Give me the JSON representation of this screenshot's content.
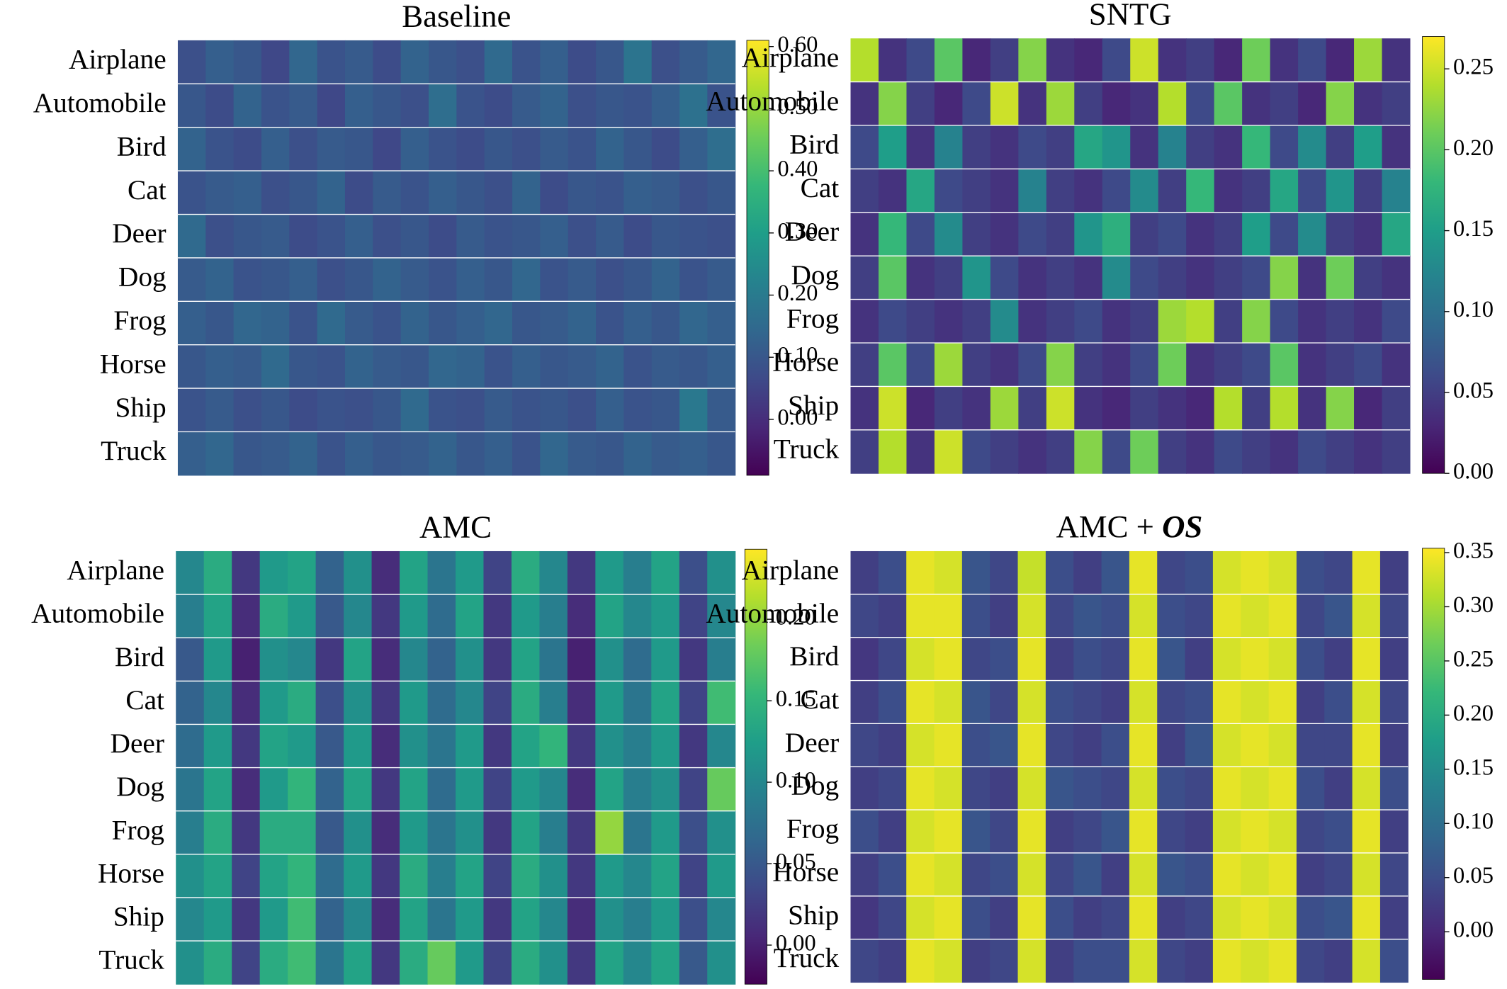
{
  "chart_data": [
    {
      "type": "heatmap",
      "title": "Baseline",
      "categories": [
        "Airplane",
        "Automobile",
        "Bird",
        "Cat",
        "Deer",
        "Dog",
        "Frog",
        "Horse",
        "Ship",
        "Truck"
      ],
      "values": [
        [
          0.08,
          0.12,
          0.1,
          0.06,
          0.14,
          0.09,
          0.11,
          0.07,
          0.13,
          0.1,
          0.08,
          0.15,
          0.09,
          0.12,
          0.07,
          0.1,
          0.18,
          0.08,
          0.11,
          0.14
        ],
        [
          0.1,
          0.07,
          0.13,
          0.09,
          0.11,
          0.06,
          0.12,
          0.1,
          0.08,
          0.16,
          0.09,
          0.07,
          0.11,
          0.13,
          0.08,
          0.1,
          0.09,
          0.12,
          0.17,
          0.09
        ],
        [
          0.13,
          0.09,
          0.07,
          0.12,
          0.08,
          0.11,
          0.1,
          0.06,
          0.12,
          0.09,
          0.07,
          0.1,
          0.08,
          0.11,
          0.09,
          0.13,
          0.1,
          0.07,
          0.12,
          0.16
        ],
        [
          0.09,
          0.11,
          0.12,
          0.08,
          0.1,
          0.13,
          0.07,
          0.11,
          0.09,
          0.12,
          0.1,
          0.08,
          0.13,
          0.07,
          0.1,
          0.09,
          0.12,
          0.11,
          0.08,
          0.1
        ],
        [
          0.15,
          0.08,
          0.1,
          0.11,
          0.07,
          0.09,
          0.12,
          0.08,
          0.1,
          0.07,
          0.11,
          0.09,
          0.1,
          0.12,
          0.08,
          0.11,
          0.07,
          0.1,
          0.09,
          0.08
        ],
        [
          0.11,
          0.13,
          0.09,
          0.1,
          0.12,
          0.08,
          0.1,
          0.13,
          0.11,
          0.09,
          0.12,
          0.1,
          0.14,
          0.09,
          0.11,
          0.08,
          0.1,
          0.13,
          0.09,
          0.11
        ],
        [
          0.12,
          0.1,
          0.14,
          0.13,
          0.09,
          0.15,
          0.11,
          0.09,
          0.13,
          0.1,
          0.12,
          0.14,
          0.1,
          0.11,
          0.13,
          0.09,
          0.12,
          0.1,
          0.14,
          0.12
        ],
        [
          0.1,
          0.12,
          0.11,
          0.15,
          0.1,
          0.09,
          0.13,
          0.11,
          0.1,
          0.14,
          0.13,
          0.09,
          0.12,
          0.1,
          0.11,
          0.13,
          0.09,
          0.11,
          0.1,
          0.12
        ],
        [
          0.09,
          0.11,
          0.08,
          0.1,
          0.07,
          0.09,
          0.08,
          0.1,
          0.15,
          0.09,
          0.08,
          0.11,
          0.09,
          0.1,
          0.08,
          0.12,
          0.09,
          0.1,
          0.19,
          0.11
        ],
        [
          0.12,
          0.14,
          0.1,
          0.11,
          0.13,
          0.09,
          0.12,
          0.1,
          0.11,
          0.13,
          0.1,
          0.12,
          0.09,
          0.14,
          0.11,
          0.1,
          0.13,
          0.11,
          0.12,
          0.1
        ]
      ],
      "zlim": [
        -0.09,
        0.61
      ],
      "zticks": [
        {
          "value": 0,
          "label": "0.00"
        },
        {
          "value": 0.1,
          "label": "0.10"
        },
        {
          "value": 0.2,
          "label": "0.20"
        },
        {
          "value": 0.3,
          "label": "0.30"
        },
        {
          "value": 0.4,
          "label": "0.40"
        },
        {
          "value": 0.5,
          "label": "0.50"
        },
        {
          "value": 0.6,
          "label": "0.60"
        }
      ]
    },
    {
      "type": "heatmap",
      "title": "SNTG",
      "categories": [
        "Airplane",
        "Automobile",
        "Bird",
        "Cat",
        "Deer",
        "Dog",
        "Frog",
        "Horse",
        "Ship",
        "Truck"
      ],
      "values": [
        [
          0.24,
          0.04,
          0.06,
          0.2,
          0.03,
          0.05,
          0.22,
          0.04,
          0.03,
          0.06,
          0.25,
          0.04,
          0.05,
          0.03,
          0.21,
          0.04,
          0.06,
          0.03,
          0.23,
          0.04
        ],
        [
          0.04,
          0.22,
          0.05,
          0.03,
          0.06,
          0.25,
          0.04,
          0.23,
          0.05,
          0.03,
          0.04,
          0.24,
          0.06,
          0.2,
          0.04,
          0.05,
          0.03,
          0.22,
          0.04,
          0.05
        ],
        [
          0.06,
          0.15,
          0.04,
          0.12,
          0.05,
          0.04,
          0.06,
          0.05,
          0.16,
          0.14,
          0.04,
          0.12,
          0.05,
          0.04,
          0.18,
          0.06,
          0.13,
          0.05,
          0.15,
          0.04
        ],
        [
          0.05,
          0.04,
          0.16,
          0.06,
          0.05,
          0.04,
          0.12,
          0.05,
          0.04,
          0.06,
          0.13,
          0.05,
          0.18,
          0.04,
          0.05,
          0.16,
          0.06,
          0.14,
          0.05,
          0.12
        ],
        [
          0.04,
          0.18,
          0.06,
          0.13,
          0.05,
          0.04,
          0.06,
          0.05,
          0.14,
          0.17,
          0.05,
          0.06,
          0.04,
          0.05,
          0.15,
          0.06,
          0.13,
          0.05,
          0.04,
          0.16
        ],
        [
          0.05,
          0.2,
          0.04,
          0.05,
          0.14,
          0.06,
          0.04,
          0.05,
          0.04,
          0.13,
          0.06,
          0.05,
          0.04,
          0.05,
          0.06,
          0.22,
          0.04,
          0.21,
          0.05,
          0.04
        ],
        [
          0.04,
          0.06,
          0.05,
          0.04,
          0.05,
          0.13,
          0.04,
          0.05,
          0.06,
          0.04,
          0.05,
          0.23,
          0.24,
          0.05,
          0.22,
          0.06,
          0.04,
          0.05,
          0.04,
          0.06
        ],
        [
          0.05,
          0.2,
          0.06,
          0.23,
          0.05,
          0.04,
          0.06,
          0.22,
          0.05,
          0.04,
          0.06,
          0.21,
          0.04,
          0.05,
          0.06,
          0.2,
          0.04,
          0.05,
          0.06,
          0.04
        ],
        [
          0.04,
          0.25,
          0.03,
          0.05,
          0.04,
          0.23,
          0.05,
          0.25,
          0.04,
          0.03,
          0.05,
          0.04,
          0.03,
          0.24,
          0.05,
          0.24,
          0.04,
          0.22,
          0.03,
          0.05
        ],
        [
          0.05,
          0.24,
          0.04,
          0.25,
          0.06,
          0.05,
          0.04,
          0.05,
          0.22,
          0.06,
          0.21,
          0.05,
          0.04,
          0.06,
          0.05,
          0.04,
          0.06,
          0.05,
          0.04,
          0.05
        ]
      ],
      "zlim": [
        0,
        0.27
      ],
      "zticks": [
        {
          "value": 0,
          "label": "0.00"
        },
        {
          "value": 0.05,
          "label": "0.05"
        },
        {
          "value": 0.1,
          "label": "0.10"
        },
        {
          "value": 0.15,
          "label": "0.15"
        },
        {
          "value": 0.2,
          "label": "0.20"
        },
        {
          "value": 0.25,
          "label": "0.25"
        }
      ]
    },
    {
      "type": "heatmap",
      "title": "AMC",
      "categories": [
        "Airplane",
        "Automobile",
        "Bird",
        "Cat",
        "Deer",
        "Dog",
        "Frog",
        "Horse",
        "Ship",
        "Truck"
      ],
      "values": [
        [
          0.1,
          0.14,
          0.02,
          0.12,
          0.13,
          0.06,
          0.11,
          0.01,
          0.13,
          0.08,
          0.12,
          0.03,
          0.14,
          0.1,
          0.02,
          0.12,
          0.09,
          0.13,
          0.04,
          0.11
        ],
        [
          0.09,
          0.13,
          0.01,
          0.14,
          0.12,
          0.05,
          0.1,
          0.02,
          0.12,
          0.07,
          0.13,
          0.02,
          0.12,
          0.09,
          0.01,
          0.13,
          0.1,
          0.12,
          0.03,
          0.1
        ],
        [
          0.05,
          0.12,
          0.0,
          0.11,
          0.1,
          0.02,
          0.13,
          0.01,
          0.1,
          0.06,
          0.11,
          0.02,
          0.13,
          0.08,
          0.0,
          0.11,
          0.07,
          0.12,
          0.02,
          0.09
        ],
        [
          0.06,
          0.1,
          0.01,
          0.12,
          0.14,
          0.04,
          0.11,
          0.02,
          0.12,
          0.07,
          0.1,
          0.03,
          0.14,
          0.09,
          0.01,
          0.12,
          0.08,
          0.13,
          0.03,
          0.16
        ],
        [
          0.07,
          0.12,
          0.02,
          0.13,
          0.12,
          0.05,
          0.12,
          0.01,
          0.11,
          0.08,
          0.12,
          0.02,
          0.13,
          0.15,
          0.02,
          0.11,
          0.09,
          0.12,
          0.02,
          0.1
        ],
        [
          0.08,
          0.13,
          0.01,
          0.12,
          0.15,
          0.06,
          0.13,
          0.02,
          0.13,
          0.07,
          0.12,
          0.03,
          0.12,
          0.1,
          0.01,
          0.13,
          0.09,
          0.11,
          0.03,
          0.18
        ],
        [
          0.09,
          0.14,
          0.02,
          0.14,
          0.14,
          0.05,
          0.11,
          0.01,
          0.12,
          0.08,
          0.11,
          0.02,
          0.13,
          0.09,
          0.02,
          0.2,
          0.08,
          0.12,
          0.04,
          0.11
        ],
        [
          0.11,
          0.13,
          0.03,
          0.13,
          0.15,
          0.07,
          0.12,
          0.02,
          0.14,
          0.09,
          0.13,
          0.03,
          0.14,
          0.11,
          0.02,
          0.12,
          0.1,
          0.13,
          0.03,
          0.12
        ],
        [
          0.1,
          0.12,
          0.02,
          0.12,
          0.16,
          0.06,
          0.1,
          0.01,
          0.13,
          0.08,
          0.12,
          0.02,
          0.13,
          0.1,
          0.01,
          0.11,
          0.09,
          0.12,
          0.04,
          0.1
        ],
        [
          0.11,
          0.14,
          0.03,
          0.14,
          0.16,
          0.08,
          0.13,
          0.02,
          0.14,
          0.18,
          0.12,
          0.03,
          0.14,
          0.11,
          0.02,
          0.13,
          0.1,
          0.13,
          0.05,
          0.11
        ]
      ],
      "zlim": [
        -0.024,
        0.243
      ],
      "zticks": [
        {
          "value": 0,
          "label": "0.00"
        },
        {
          "value": 0.05,
          "label": "0.05"
        },
        {
          "value": 0.1,
          "label": "0.10"
        },
        {
          "value": 0.15,
          "label": "0.15"
        },
        {
          "value": 0.2,
          "label": "0.20"
        }
      ]
    },
    {
      "type": "heatmap",
      "title": [
        "AMC + ",
        "OS"
      ],
      "categories": [
        "Airplane",
        "Automobile",
        "Bird",
        "Cat",
        "Deer",
        "Dog",
        "Frog",
        "Horse",
        "Ship",
        "Truck"
      ],
      "values": [
        [
          0.03,
          0.05,
          0.34,
          0.33,
          0.06,
          0.04,
          0.32,
          0.05,
          0.03,
          0.06,
          0.34,
          0.04,
          0.05,
          0.33,
          0.34,
          0.33,
          0.05,
          0.04,
          0.34,
          0.03
        ],
        [
          0.04,
          0.03,
          0.34,
          0.34,
          0.05,
          0.03,
          0.33,
          0.04,
          0.06,
          0.05,
          0.33,
          0.05,
          0.04,
          0.34,
          0.33,
          0.34,
          0.04,
          0.06,
          0.33,
          0.04
        ],
        [
          0.02,
          0.04,
          0.33,
          0.34,
          0.04,
          0.05,
          0.34,
          0.03,
          0.05,
          0.04,
          0.34,
          0.06,
          0.03,
          0.33,
          0.34,
          0.33,
          0.05,
          0.03,
          0.34,
          0.03
        ],
        [
          0.03,
          0.05,
          0.34,
          0.33,
          0.06,
          0.04,
          0.33,
          0.05,
          0.04,
          0.03,
          0.33,
          0.04,
          0.05,
          0.34,
          0.33,
          0.34,
          0.03,
          0.05,
          0.33,
          0.04
        ],
        [
          0.04,
          0.03,
          0.33,
          0.34,
          0.05,
          0.06,
          0.34,
          0.04,
          0.03,
          0.05,
          0.34,
          0.03,
          0.06,
          0.33,
          0.34,
          0.33,
          0.04,
          0.04,
          0.34,
          0.03
        ],
        [
          0.03,
          0.04,
          0.34,
          0.33,
          0.04,
          0.03,
          0.33,
          0.06,
          0.05,
          0.04,
          0.33,
          0.05,
          0.04,
          0.34,
          0.33,
          0.34,
          0.05,
          0.03,
          0.33,
          0.05
        ],
        [
          0.05,
          0.03,
          0.33,
          0.34,
          0.06,
          0.04,
          0.34,
          0.03,
          0.04,
          0.06,
          0.34,
          0.04,
          0.03,
          0.33,
          0.34,
          0.33,
          0.04,
          0.05,
          0.34,
          0.03
        ],
        [
          0.03,
          0.05,
          0.34,
          0.33,
          0.04,
          0.05,
          0.33,
          0.04,
          0.06,
          0.03,
          0.33,
          0.06,
          0.05,
          0.34,
          0.33,
          0.34,
          0.03,
          0.04,
          0.33,
          0.04
        ],
        [
          0.02,
          0.04,
          0.33,
          0.34,
          0.05,
          0.03,
          0.34,
          0.05,
          0.03,
          0.04,
          0.34,
          0.03,
          0.04,
          0.33,
          0.34,
          0.33,
          0.05,
          0.06,
          0.34,
          0.03
        ],
        [
          0.04,
          0.03,
          0.34,
          0.33,
          0.03,
          0.04,
          0.33,
          0.03,
          0.05,
          0.05,
          0.33,
          0.04,
          0.03,
          0.34,
          0.33,
          0.34,
          0.04,
          0.03,
          0.33,
          0.05
        ]
      ],
      "zlim": [
        -0.044,
        0.354
      ],
      "zticks": [
        {
          "value": 0,
          "label": "0.00"
        },
        {
          "value": 0.05,
          "label": "0.05"
        },
        {
          "value": 0.1,
          "label": "0.10"
        },
        {
          "value": 0.15,
          "label": "0.15"
        },
        {
          "value": 0.2,
          "label": "0.20"
        },
        {
          "value": 0.25,
          "label": "0.25"
        },
        {
          "value": 0.3,
          "label": "0.30"
        },
        {
          "value": 0.35,
          "label": "0.35"
        }
      ]
    }
  ]
}
